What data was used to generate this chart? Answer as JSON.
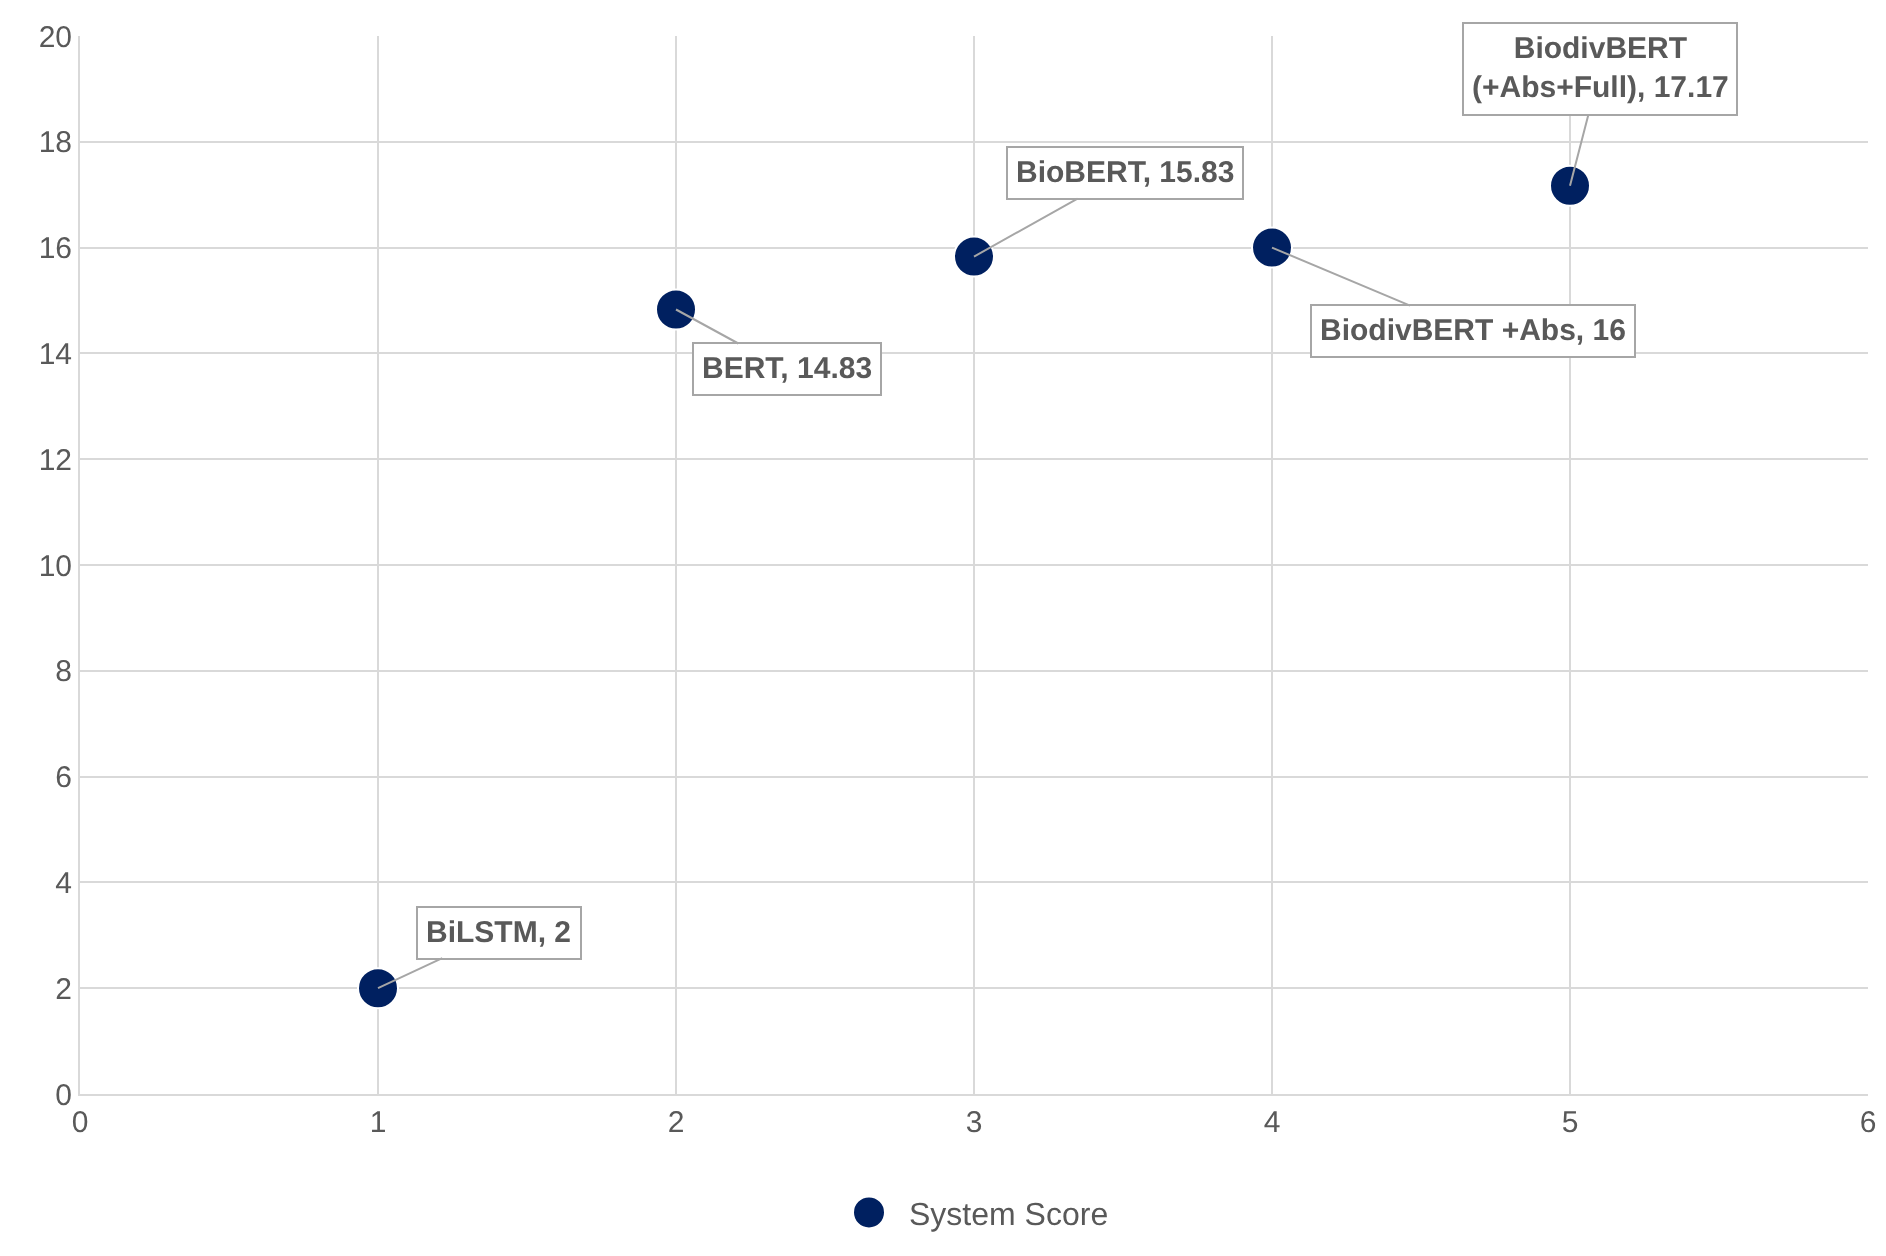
{
  "chart_data": {
    "type": "scatter",
    "x": [
      1,
      2,
      3,
      4,
      5
    ],
    "series": [
      {
        "name": "System Score",
        "color": "#002060",
        "values": [
          2,
          14.83,
          15.83,
          16,
          17.17
        ]
      }
    ],
    "annotations": [
      {
        "text": "BiLSTM, 2",
        "x": 1,
        "y": 2
      },
      {
        "text": "BERT, 14.83",
        "x": 2,
        "y": 14.83
      },
      {
        "text": "BioBERT, 15.83",
        "x": 3,
        "y": 15.83
      },
      {
        "text": "BiodivBERT +Abs, 16",
        "x": 4,
        "y": 16
      },
      {
        "text": "BiodivBERT (+Abs+Full), 17.17",
        "x": 5,
        "y": 17.17
      }
    ],
    "xlim": [
      0,
      6
    ],
    "xticks": [
      0,
      1,
      2,
      3,
      4,
      5,
      6
    ],
    "ylim": [
      0,
      20
    ],
    "yticks": [
      0,
      2,
      4,
      6,
      8,
      10,
      12,
      14,
      16,
      18,
      20
    ],
    "grid": true,
    "legend": "bottom",
    "marker": "circle"
  }
}
